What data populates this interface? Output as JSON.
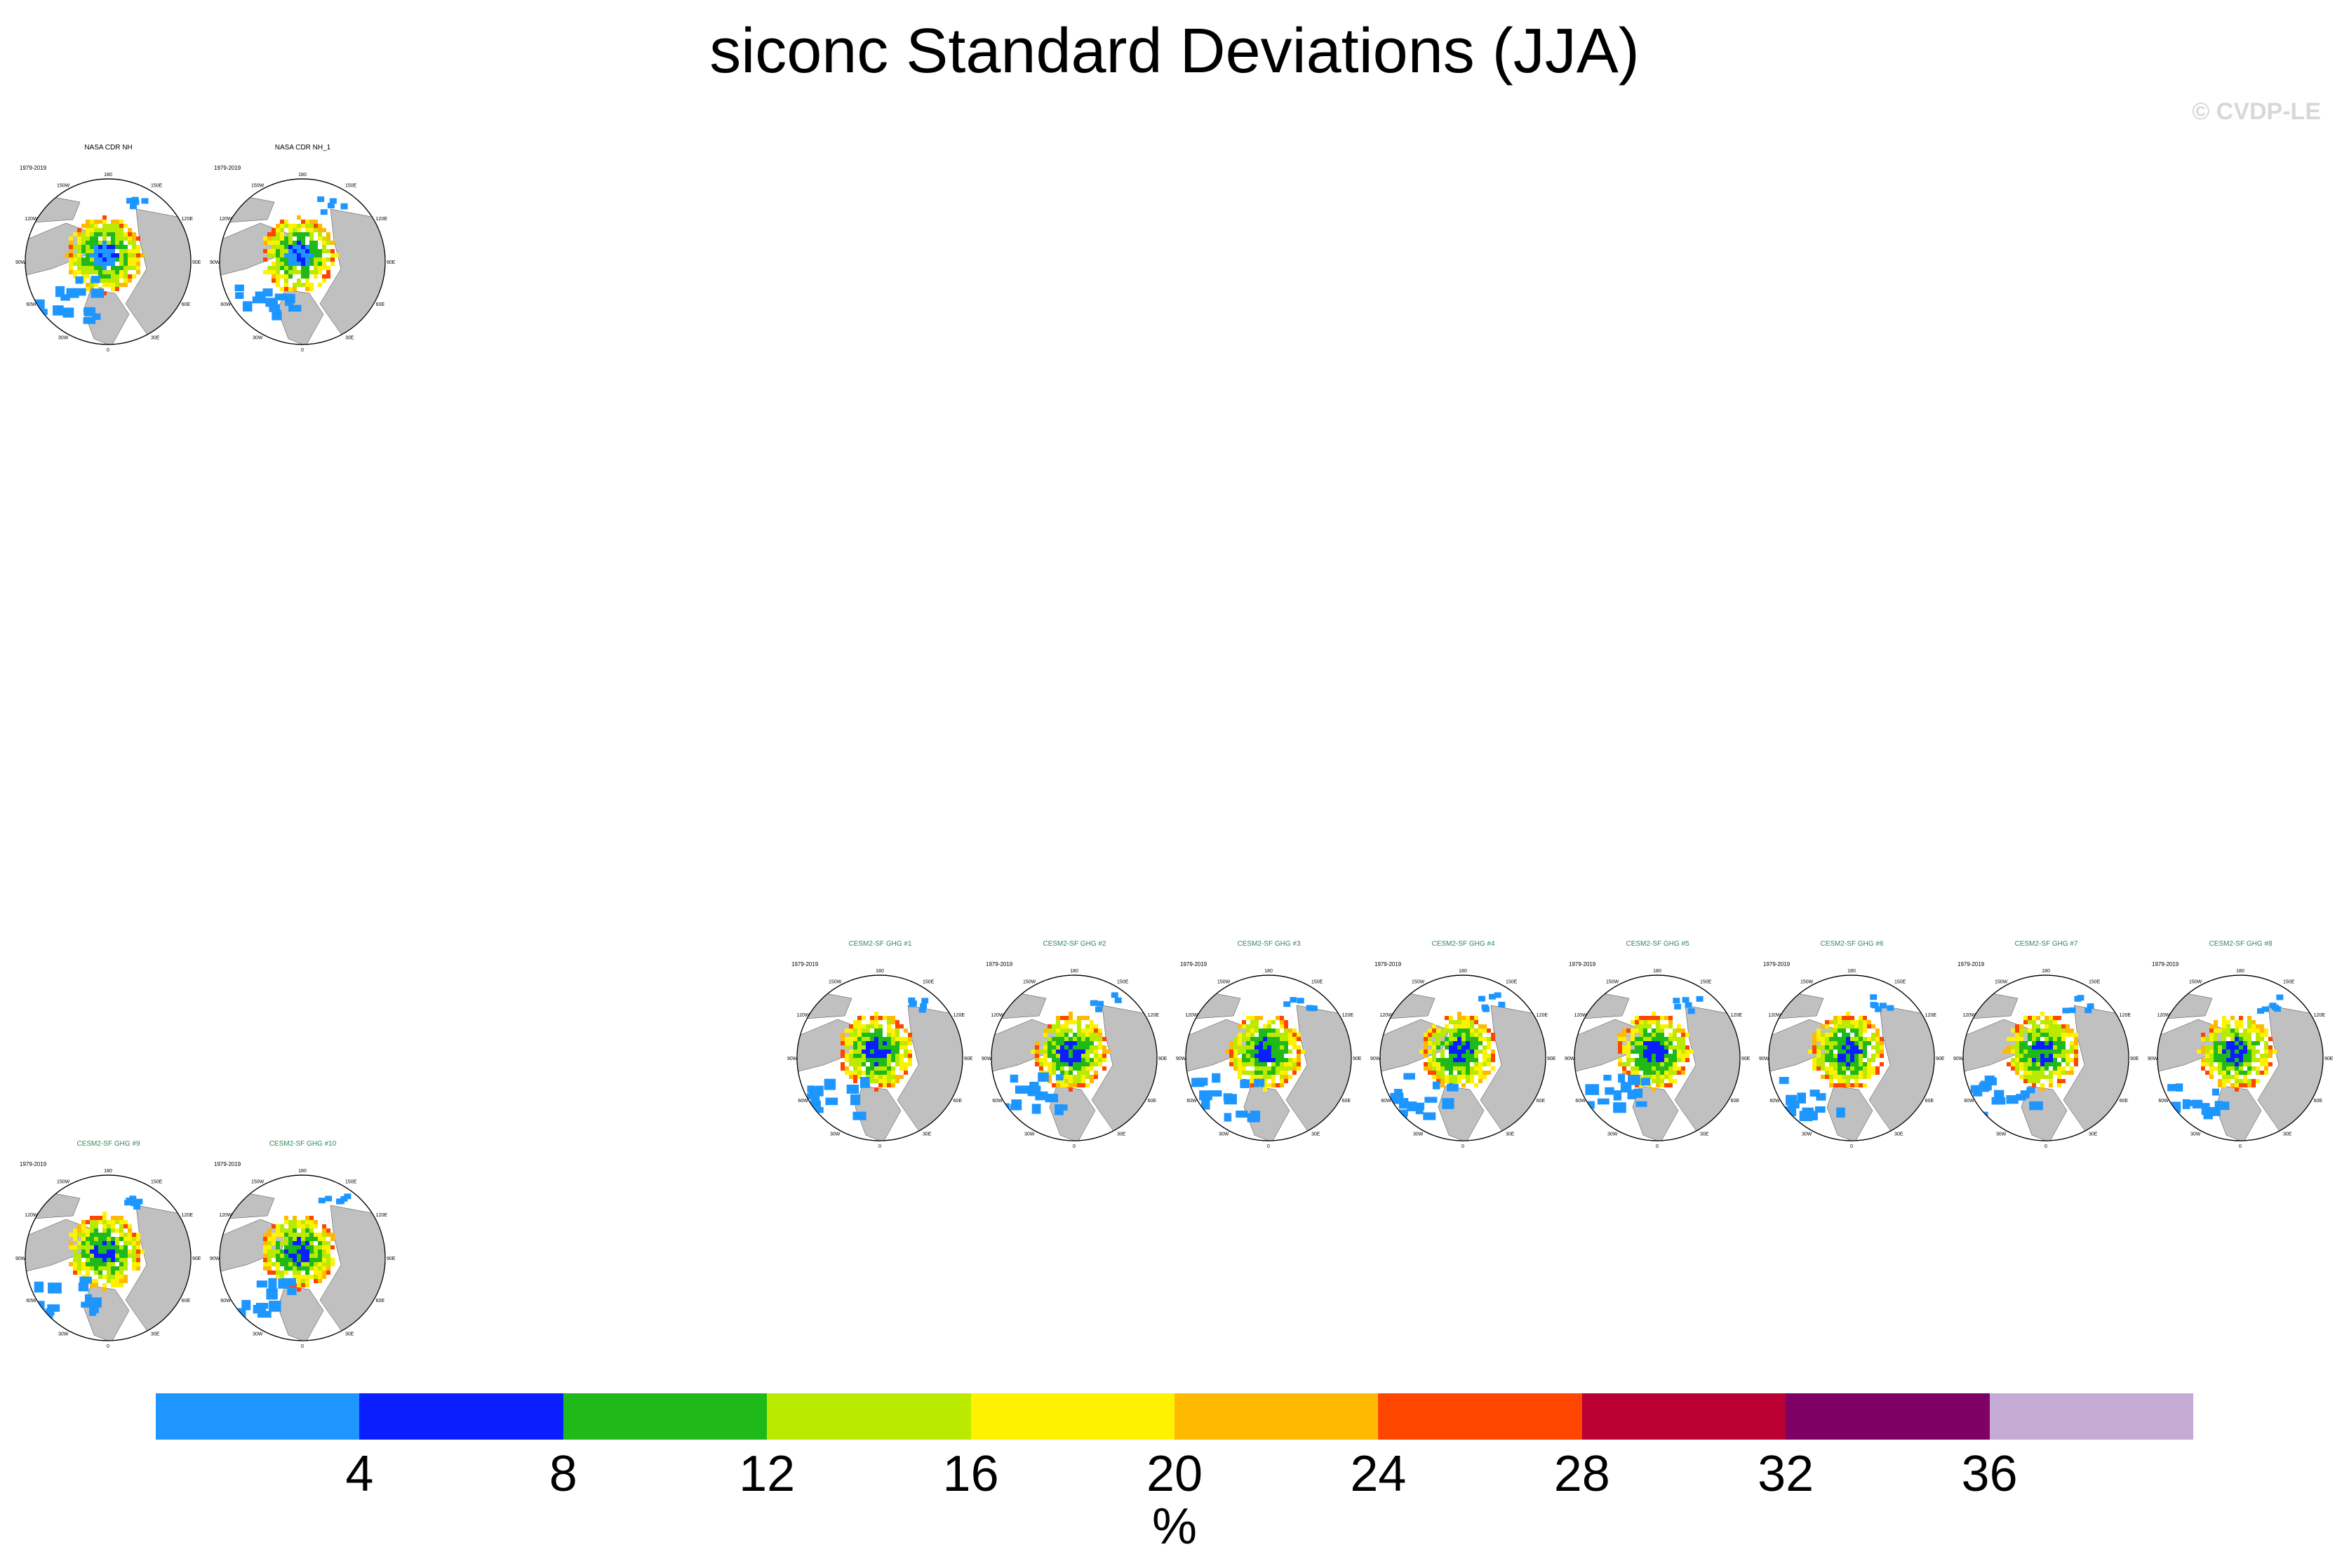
{
  "title": "siconc Standard Deviations (JJA)",
  "credit": "© CVDP-LE",
  "panels": [
    {
      "title": "NASA CDR NH",
      "years": "1979-2019",
      "title_color": "#000000",
      "style": "obs1"
    },
    {
      "title": "NASA CDR NH_1",
      "years": "1979-2019",
      "title_color": "#000000",
      "style": "obs2"
    },
    {
      "title": "CESM2-SF GHG #1",
      "years": "1979-2019",
      "title_color": "#2e8b57",
      "style": "m1"
    },
    {
      "title": "CESM2-SF GHG #2",
      "years": "1979-2019",
      "title_color": "#2e8b57",
      "style": "m2"
    },
    {
      "title": "CESM2-SF GHG #3",
      "years": "1979-2019",
      "title_color": "#2e8b57",
      "style": "m3"
    },
    {
      "title": "CESM2-SF GHG #4",
      "years": "1979-2019",
      "title_color": "#2e8b57",
      "style": "m4"
    },
    {
      "title": "CESM2-SF GHG #5",
      "years": "1979-2019",
      "title_color": "#2e8b57",
      "style": "m5"
    },
    {
      "title": "CESM2-SF GHG #6",
      "years": "1979-2019",
      "title_color": "#2e8b57",
      "style": "m6"
    },
    {
      "title": "CESM2-SF GHG #7",
      "years": "1979-2019",
      "title_color": "#2e8b57",
      "style": "m7"
    },
    {
      "title": "CESM2-SF GHG #8",
      "years": "1979-2019",
      "title_color": "#2e8b57",
      "style": "m8"
    },
    {
      "title": "CESM2-SF GHG #9",
      "years": "1979-2019",
      "title_color": "#2e8b57",
      "style": "m9"
    },
    {
      "title": "CESM2-SF GHG #10",
      "years": "1979-2019",
      "title_color": "#2e8b57",
      "style": "m10"
    }
  ],
  "map_labels": {
    "top": "180",
    "bottom": "0",
    "left": "90W",
    "right": "90E",
    "ul": "120W",
    "ur": "120E",
    "ll": "60W",
    "lr": "60E",
    "ul2": "150W",
    "ur2": "150E",
    "ll2": "30W",
    "lr2": "30E"
  },
  "colorbar": {
    "colors": [
      "#1e96ff",
      "#0a1eff",
      "#20b91a",
      "#b9ea00",
      "#fff200",
      "#ffb900",
      "#ff4600",
      "#bb0033",
      "#7f0064",
      "#c6aad6"
    ],
    "ticks": [
      "4",
      "8",
      "12",
      "16",
      "20",
      "24",
      "28",
      "32",
      "36"
    ],
    "units": "%"
  },
  "land_color": "#c0c0c0"
}
